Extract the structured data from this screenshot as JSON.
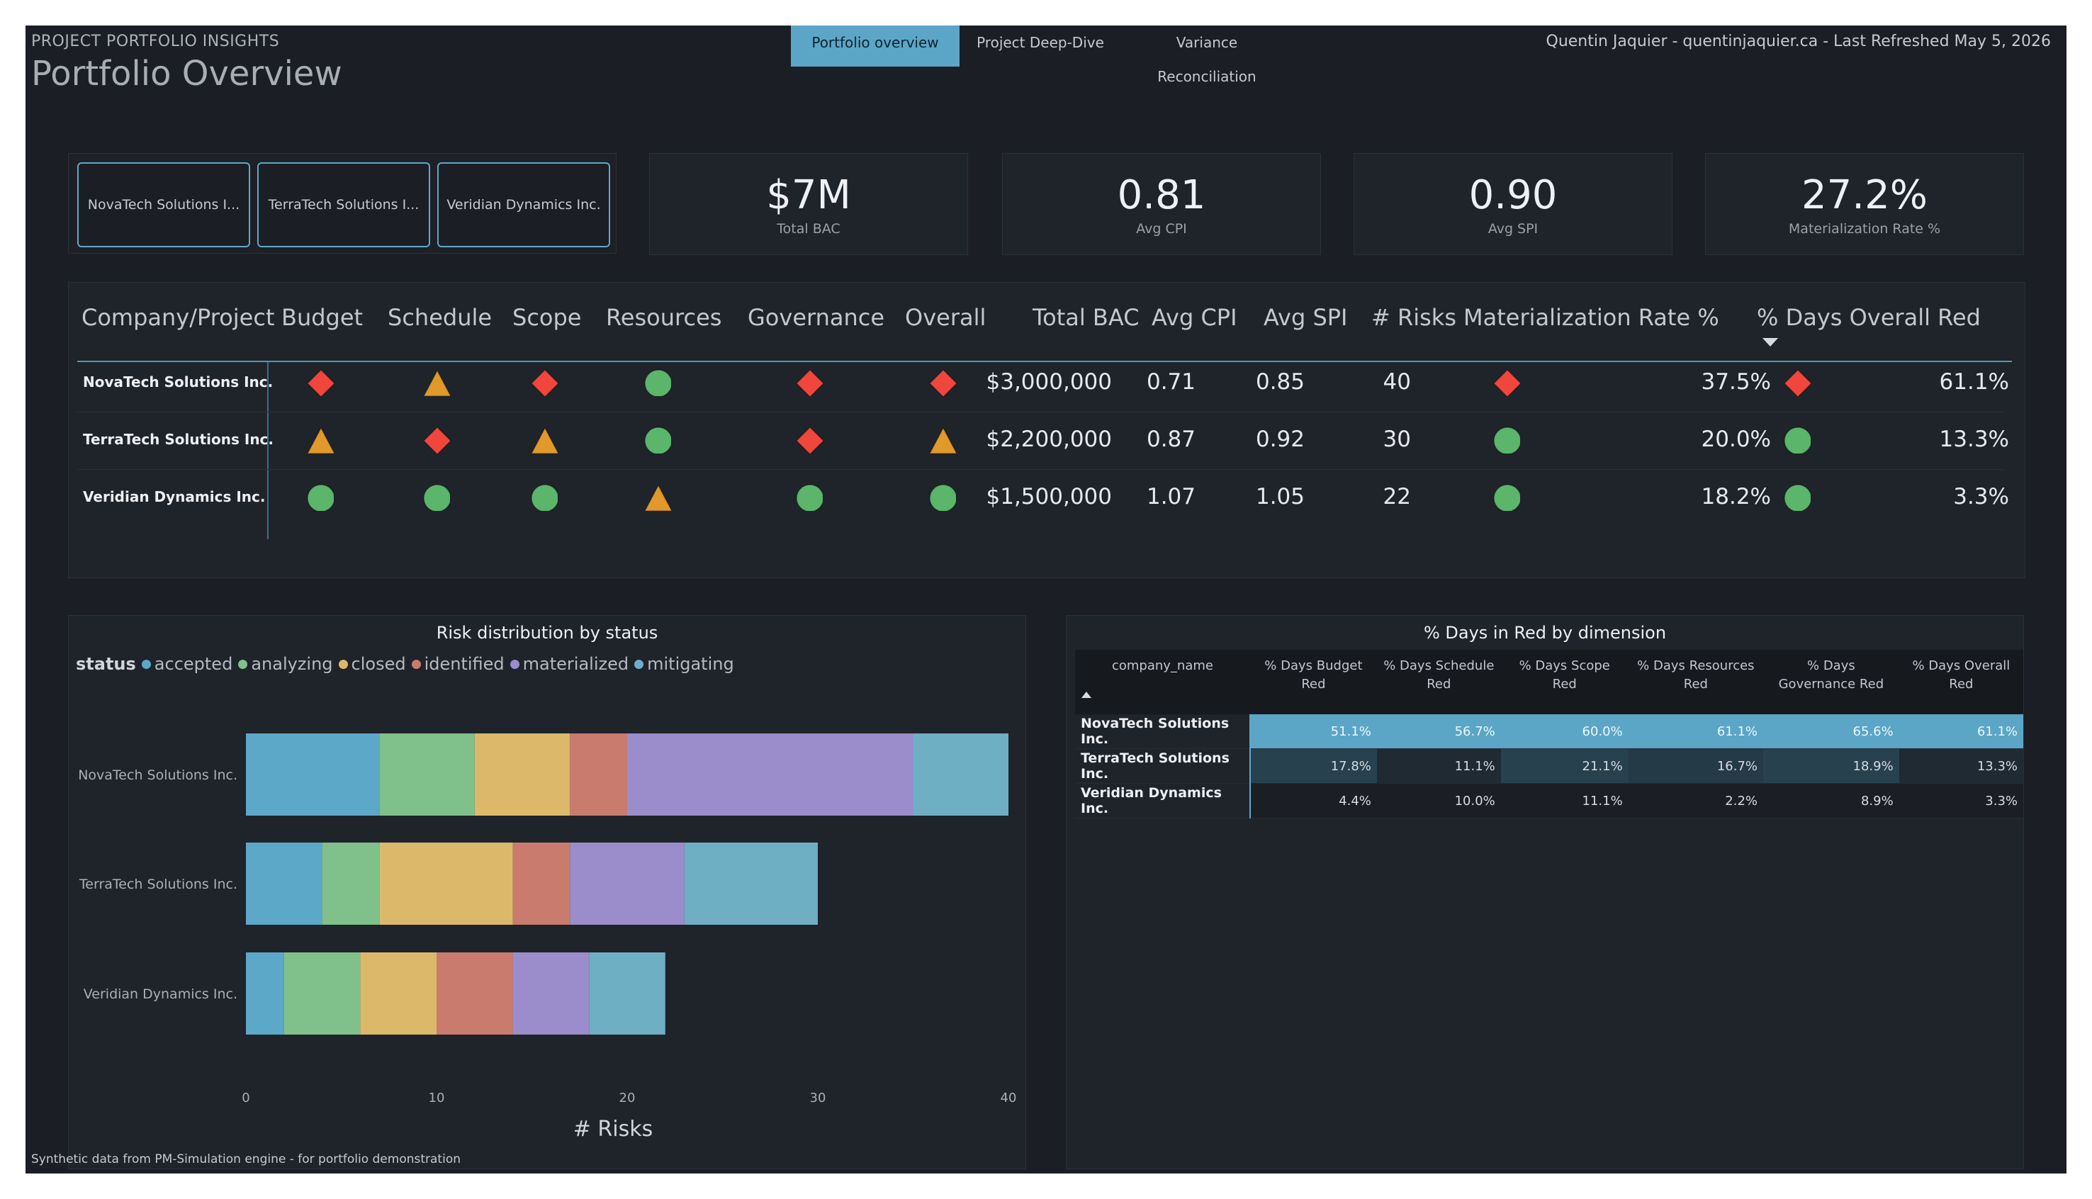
{
  "header": {
    "subtitle": "PROJECT PORTFOLIO INSIGHTS",
    "title": "Portfolio Overview",
    "tabs": [
      "Portfolio overview",
      "Project Deep-Dive",
      "Variance Reconciliation"
    ],
    "active_tab": 0,
    "right_text": "Quentin Jaquier - quentinjaquier.ca - Last Refreshed May 5, 2026"
  },
  "filter": {
    "companies": [
      "NovaTech Solutions I...",
      "TerraTech Solutions I...",
      "Veridian Dynamics Inc."
    ]
  },
  "kpis": [
    {
      "value": "$7M",
      "label": "Total BAC"
    },
    {
      "value": "0.81",
      "label": "Avg CPI"
    },
    {
      "value": "0.90",
      "label": "Avg SPI"
    },
    {
      "value": "27.2%",
      "label": "Materialization Rate %"
    }
  ],
  "health_table": {
    "headers": {
      "company": "Company/Project",
      "budget": "Budget",
      "schedule": "Schedule",
      "scope": "Scope",
      "resources": "Resources",
      "governance": "Governance",
      "overall": "Overall",
      "bac": "Total BAC",
      "cpi": "Avg CPI",
      "spi": "Avg SPI",
      "risks": "# Risks",
      "mat": "Materialization Rate %",
      "red": "% Days Overall Red"
    },
    "sort_icon": "sort-desc-icon",
    "status_icons": {
      "red": "red-diamond-icon",
      "amber": "amber-triangle-icon",
      "green": "green-circle-icon"
    },
    "status_colors": {
      "red": "#f0463c",
      "amber": "#e0992a",
      "green": "#5bb56a"
    },
    "rows": [
      {
        "company": "NovaTech Solutions Inc.",
        "budget": "red",
        "schedule": "amber",
        "scope": "red",
        "resources": "green",
        "governance": "red",
        "overall": "red",
        "bac": "$3,000,000",
        "cpi": "0.71",
        "spi": "0.85",
        "risks": "40",
        "mat_status": "red",
        "mat": "37.5%",
        "red_status": "red",
        "red": "61.1%"
      },
      {
        "company": "TerraTech Solutions Inc.",
        "budget": "amber",
        "schedule": "red",
        "scope": "amber",
        "resources": "green",
        "governance": "red",
        "overall": "amber",
        "bac": "$2,200,000",
        "cpi": "0.87",
        "spi": "0.92",
        "risks": "30",
        "mat_status": "green",
        "mat": "20.0%",
        "red_status": "green",
        "red": "13.3%"
      },
      {
        "company": "Veridian Dynamics Inc.",
        "budget": "green",
        "schedule": "green",
        "scope": "green",
        "resources": "amber",
        "governance": "green",
        "overall": "green",
        "bac": "$1,500,000",
        "cpi": "1.07",
        "spi": "1.05",
        "risks": "22",
        "mat_status": "green",
        "mat": "18.2%",
        "red_status": "green",
        "red": "3.3%"
      }
    ]
  },
  "chart_data": {
    "type": "bar",
    "orientation": "horizontal",
    "stacked": true,
    "title": "Risk distribution by status",
    "legend_title": "status",
    "legend_position": "top-left",
    "xlabel": "# Risks",
    "ylabel": "",
    "xlim": [
      0,
      40
    ],
    "xticks": [
      0,
      10,
      20,
      30,
      40
    ],
    "grid": false,
    "categories": [
      "NovaTech Solutions Inc.",
      "TerraTech Solutions Inc.",
      "Veridian Dynamics Inc."
    ],
    "series": [
      {
        "name": "accepted",
        "color": "#5ca8c8",
        "values": [
          7,
          4,
          2
        ]
      },
      {
        "name": "analyzing",
        "color": "#7fc08b",
        "values": [
          5,
          3,
          4
        ]
      },
      {
        "name": "closed",
        "color": "#dcb96a",
        "values": [
          5,
          7,
          4
        ]
      },
      {
        "name": "identified",
        "color": "#c97c6d",
        "values": [
          3,
          3,
          4
        ]
      },
      {
        "name": "materialized",
        "color": "#9b8ccc",
        "values": [
          15,
          6,
          4
        ]
      },
      {
        "name": "mitigating",
        "color": "#6eafc3",
        "values": [
          5,
          7,
          4
        ]
      }
    ]
  },
  "pct_table": {
    "title": "% Days in Red by dimension",
    "headers": [
      "company_name",
      "% Days Budget Red",
      "% Days Schedule Red",
      "% Days Scope Red",
      "% Days Resources Red",
      "% Days Governance Red",
      "% Days Overall Red"
    ],
    "sort_icon": "sort-asc-icon",
    "rows": [
      {
        "name": "NovaTech Solutions Inc.",
        "values": [
          "51.1%",
          "56.7%",
          "60.0%",
          "61.1%",
          "65.6%",
          "61.1%"
        ],
        "bg": [
          "#5ba6c6",
          "#5ba6c6",
          "#5ba6c6",
          "#5ba6c6",
          "#5ba6c6",
          "#5ba6c6"
        ]
      },
      {
        "name": "TerraTech Solutions Inc.",
        "values": [
          "17.8%",
          "11.1%",
          "21.1%",
          "16.7%",
          "18.9%",
          "13.3%"
        ],
        "bg": [
          "#27414f",
          "#1f2a32",
          "#27414f",
          "#243a47",
          "#27414f",
          "#1f2a32"
        ]
      },
      {
        "name": "Veridian Dynamics Inc.",
        "values": [
          "4.4%",
          "10.0%",
          "11.1%",
          "2.2%",
          "8.9%",
          "3.3%"
        ],
        "bg": [
          "#1b1e24",
          "#1b1e24",
          "#1b1e24",
          "#1b1e24",
          "#1b1e24",
          "#1b1e24"
        ]
      }
    ]
  },
  "footer": "Synthetic data from PM-Simulation engine - for portfolio demonstration"
}
